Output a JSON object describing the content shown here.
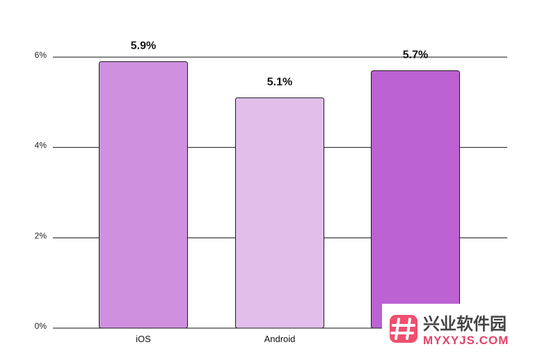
{
  "chart_data": {
    "type": "bar",
    "title": "",
    "xlabel": "",
    "ylabel": "",
    "categories": [
      "iOS",
      "Android",
      ""
    ],
    "values": [
      5.9,
      5.1,
      5.7
    ],
    "value_labels": [
      "5.9%",
      "5.1%",
      "5.7%"
    ],
    "bar_colors": [
      "#cf90df",
      "#e2bfea",
      "#bc62d2"
    ],
    "ylim": [
      0,
      6
    ],
    "yticks": [
      0,
      2,
      4,
      6
    ],
    "ytick_labels": [
      "0%",
      "2%",
      "4%",
      "6%"
    ],
    "grid": true,
    "legend": "none"
  },
  "watermark": {
    "text_cn": "兴业软件园",
    "text_en": "MYXYJS.COM",
    "icon": "hash-logo-icon",
    "accent_color": "#e2446a"
  }
}
